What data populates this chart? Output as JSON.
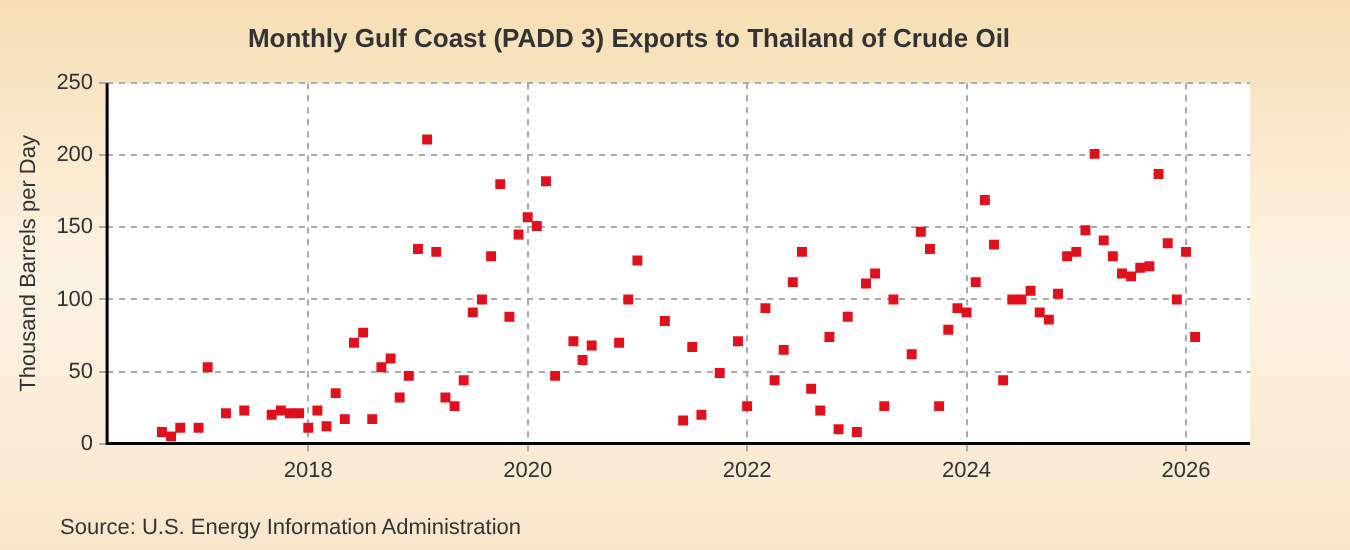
{
  "chart_data": {
    "type": "scatter",
    "title": "Monthly Gulf Coast (PADD 3) Exports to Thailand of Crude Oil",
    "ylabel": "Thousand Barrels per Day",
    "annotations": [
      "Source: U.S. Energy Information Administration"
    ],
    "x": [
      "2016-09",
      "2016-10",
      "2016-11",
      "2017-01",
      "2017-02",
      "2017-04",
      "2017-06",
      "2017-09",
      "2017-10",
      "2017-11",
      "2017-12",
      "2018-01",
      "2018-02",
      "2018-03",
      "2018-04",
      "2018-05",
      "2018-06",
      "2018-07",
      "2018-08",
      "2018-09",
      "2018-10",
      "2018-11",
      "2018-12",
      "2019-01",
      "2019-02",
      "2019-03",
      "2019-04",
      "2019-05",
      "2019-06",
      "2019-07",
      "2019-08",
      "2019-09",
      "2019-10",
      "2019-11",
      "2019-12",
      "2020-01",
      "2020-02",
      "2020-03",
      "2020-04",
      "2020-06",
      "2020-07",
      "2020-08",
      "2020-11",
      "2020-12",
      "2021-01",
      "2021-04",
      "2021-06",
      "2021-07",
      "2021-08",
      "2021-10",
      "2021-12",
      "2022-01",
      "2022-03",
      "2022-04",
      "2022-05",
      "2022-06",
      "2022-07",
      "2022-08",
      "2022-09",
      "2022-10",
      "2022-11",
      "2022-12",
      "2023-01",
      "2023-02",
      "2023-03",
      "2023-04",
      "2023-05",
      "2023-07",
      "2023-08",
      "2023-09",
      "2023-10",
      "2023-11",
      "2023-12",
      "2024-01",
      "2024-02",
      "2024-03",
      "2024-04",
      "2024-05",
      "2024-06",
      "2024-07",
      "2024-08",
      "2024-09",
      "2024-10",
      "2024-11",
      "2024-12",
      "2025-01",
      "2025-02",
      "2025-03",
      "2025-04",
      "2025-05",
      "2025-06",
      "2025-07",
      "2025-08",
      "2025-09",
      "2025-10",
      "2025-11",
      "2025-12",
      "2026-01",
      "2026-02"
    ],
    "series": [
      {
        "color": "#e0101c",
        "values": [
          8,
          5,
          11,
          11,
          53,
          21,
          23,
          20,
          23,
          21,
          21,
          11,
          23,
          12,
          35,
          17,
          70,
          77,
          17,
          53,
          59,
          32,
          47,
          135,
          211,
          133,
          32,
          26,
          44,
          91,
          100,
          130,
          180,
          88,
          145,
          157,
          151,
          182,
          47,
          71,
          58,
          68,
          70,
          100,
          127,
          85,
          16,
          67,
          20,
          49,
          71,
          26,
          94,
          44,
          65,
          112,
          133,
          38,
          23,
          74,
          10,
          88,
          8,
          111,
          118,
          26,
          100,
          62,
          147,
          135,
          26,
          79,
          94,
          91,
          112,
          169,
          138,
          44,
          100,
          100,
          106,
          91,
          86,
          104,
          130,
          133,
          148,
          201,
          141,
          130,
          118,
          116,
          122,
          123,
          187,
          139,
          100,
          133,
          74
        ]
      }
    ],
    "xlim": [
      "2016-03",
      "2026-08"
    ],
    "xticks": [
      "2018",
      "2020",
      "2022",
      "2024",
      "2026"
    ],
    "ylim": [
      0,
      250
    ],
    "yticks": [
      0,
      50,
      100,
      150,
      200,
      250
    ],
    "grid": true,
    "marker": "square",
    "legend": false
  }
}
